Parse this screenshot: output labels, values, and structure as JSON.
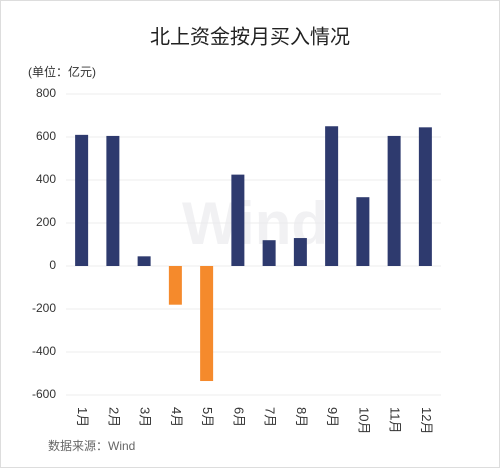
{
  "chart_data": {
    "type": "bar",
    "title": "北上资金按月买入情况",
    "unit": "(单位：亿元)",
    "source": "数据来源：Wind",
    "watermark": "Wind",
    "categories": [
      "1月",
      "2月",
      "3月",
      "4月",
      "5月",
      "6月",
      "7月",
      "8月",
      "9月",
      "10月",
      "11月",
      "12月"
    ],
    "values": [
      610,
      605,
      45,
      -180,
      -535,
      425,
      120,
      130,
      650,
      320,
      605,
      645
    ],
    "color": "#2e3a6e",
    "negative_color": "#f58a2c",
    "ylim": [
      -600,
      800
    ],
    "yticks": [
      -600,
      -400,
      -200,
      0,
      200,
      400,
      600,
      800
    ],
    "grid": true
  }
}
